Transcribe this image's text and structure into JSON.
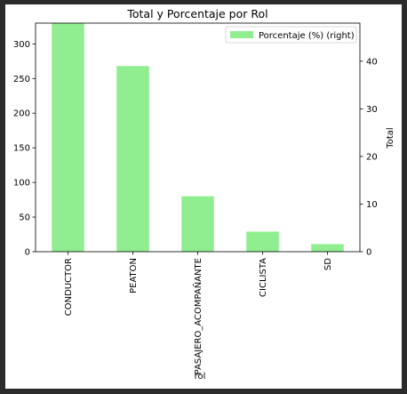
{
  "chart_data": {
    "type": "bar",
    "title": "Total y Porcentaje por Rol",
    "xlabel": "rol",
    "ylabel_left": "",
    "ylabel_right": "Total",
    "categories": [
      "CONDUCTOR",
      "PEATON",
      "PASAJERO_ACOMPAÑANTE",
      "CICLISTA",
      "SD"
    ],
    "series": [
      {
        "name": "Porcentaje (%) (right)",
        "axis": "left",
        "color": "#90ee90",
        "values": [
          330,
          268,
          80,
          29,
          11
        ]
      }
    ],
    "ylim_left": [
      0,
      330
    ],
    "yticks_left": [
      0,
      50,
      100,
      150,
      200,
      250,
      300
    ],
    "ylim_right": [
      0,
      48
    ],
    "yticks_right": [
      0,
      10,
      20,
      30,
      40
    ],
    "legend_position": "top-right",
    "grid": false
  }
}
